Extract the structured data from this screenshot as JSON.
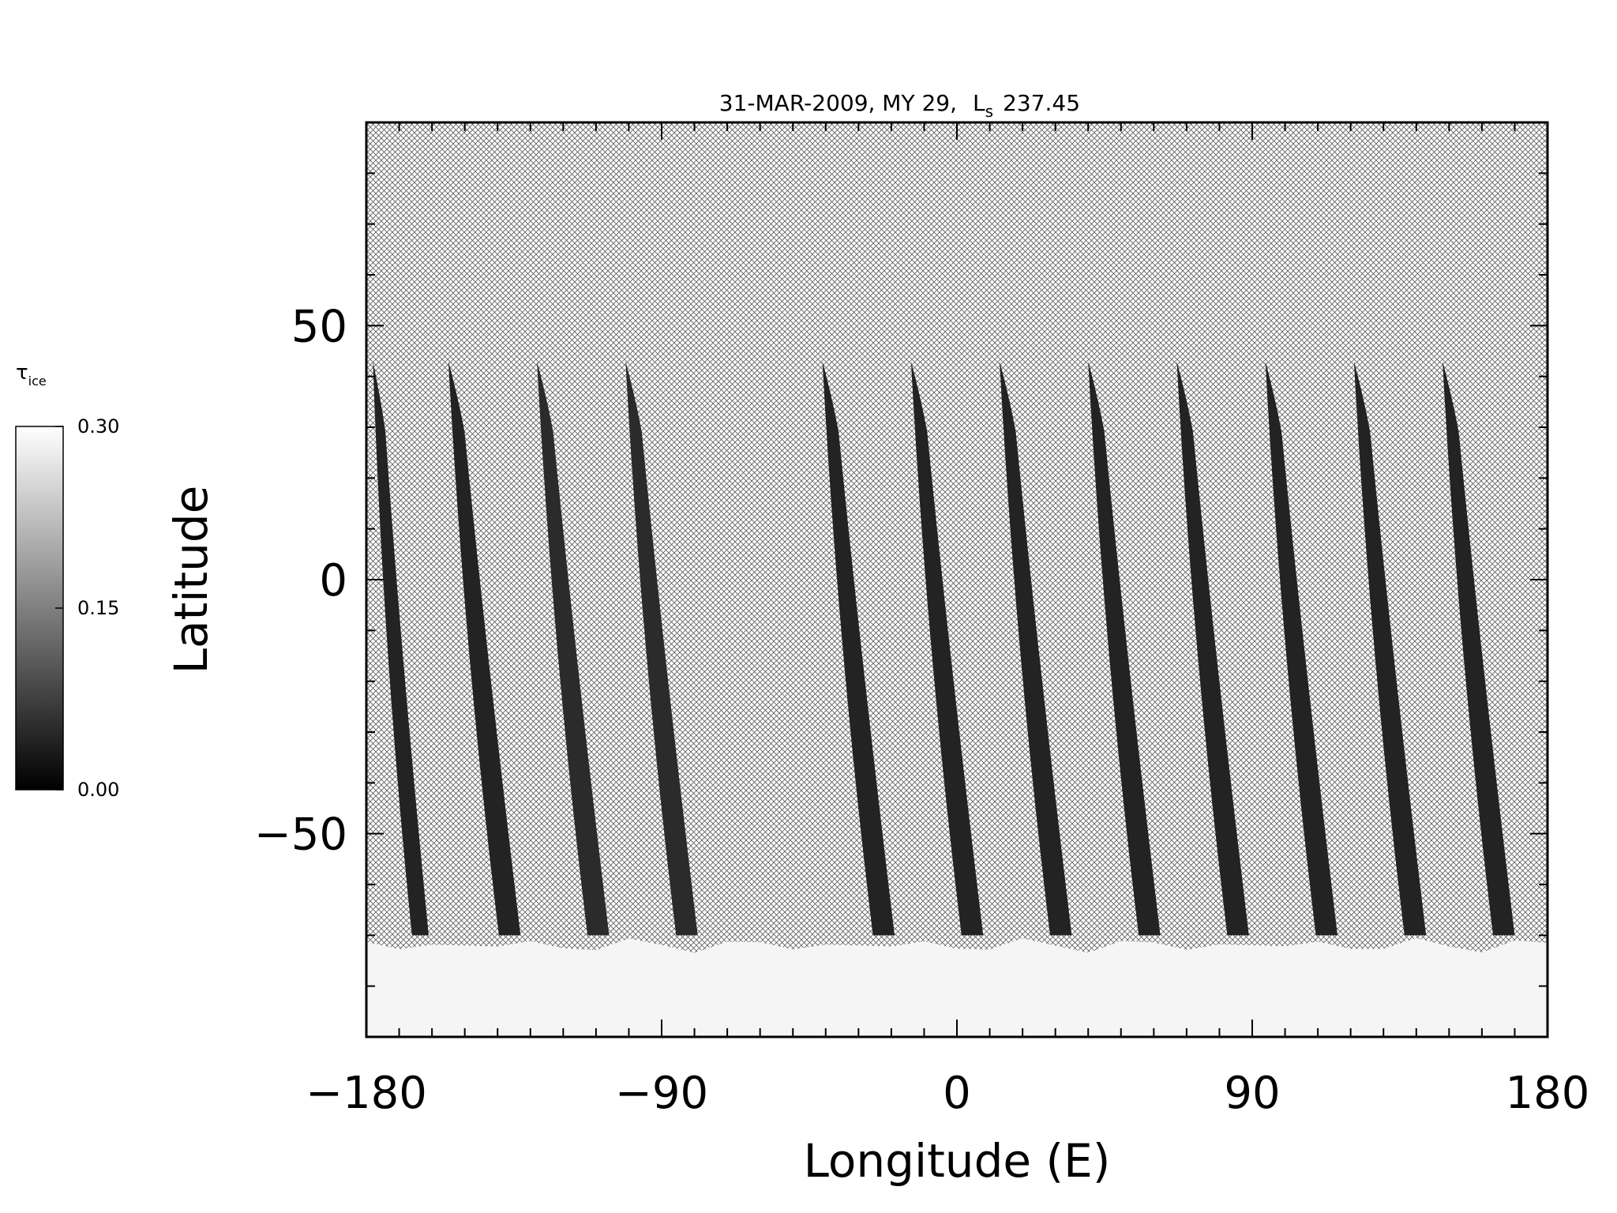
{
  "chart_data": {
    "type": "heatmap",
    "title": "31-MAR-2009, MY 29,",
    "title_ls_prefix": "L",
    "title_ls_subscript": "s",
    "title_ls_value": "237.45",
    "xlabel": "Longitude (E)",
    "ylabel": "Latitude",
    "xlim": [
      -180,
      180
    ],
    "ylim": [
      -90,
      90
    ],
    "x_ticks": [
      -180,
      -90,
      0,
      90,
      180
    ],
    "x_tick_labels": [
      "−180",
      "−90",
      "0",
      "90",
      "180"
    ],
    "y_ticks": [
      -50,
      0,
      50
    ],
    "y_tick_labels": [
      "−50",
      "0",
      "50"
    ],
    "grid": false,
    "no_data_pattern": "crosshatch",
    "colorbar": {
      "label_symbol": "τ",
      "label_subscript": "ice",
      "min": 0.0,
      "max": 0.3,
      "ticks": [
        0.0,
        0.15,
        0.3
      ],
      "tick_labels": [
        "0.00",
        "0.15",
        "0.30"
      ],
      "colormap": "grayscale"
    },
    "swaths": [
      {
        "lon_top": -178,
        "lon_bottom": -161,
        "value": 0.02
      },
      {
        "lon_top": -155,
        "lon_bottom": -133,
        "value": 0.02
      },
      {
        "lon_top": -128,
        "lon_bottom": -106,
        "value": 0.03
      },
      {
        "lon_top": -101,
        "lon_bottom": -79,
        "value": 0.03
      },
      {
        "lon_top": -41,
        "lon_bottom": -19,
        "value": 0.02
      },
      {
        "lon_top": -14,
        "lon_bottom": 8,
        "value": 0.02
      },
      {
        "lon_top": 13,
        "lon_bottom": 35,
        "value": 0.02
      },
      {
        "lon_top": 40,
        "lon_bottom": 62,
        "value": 0.02
      },
      {
        "lon_top": 67,
        "lon_bottom": 89,
        "value": 0.02
      },
      {
        "lon_top": 94,
        "lon_bottom": 116,
        "value": 0.02
      },
      {
        "lon_top": 121,
        "lon_bottom": 143,
        "value": 0.02
      },
      {
        "lon_top": 148,
        "lon_bottom": 170,
        "value": 0.02
      }
    ],
    "swath_lat_top": 43,
    "swath_lat_bottom": -70,
    "polar_cap": {
      "lat_top": -72,
      "lat_bottom": -90,
      "value": 0.3
    }
  }
}
